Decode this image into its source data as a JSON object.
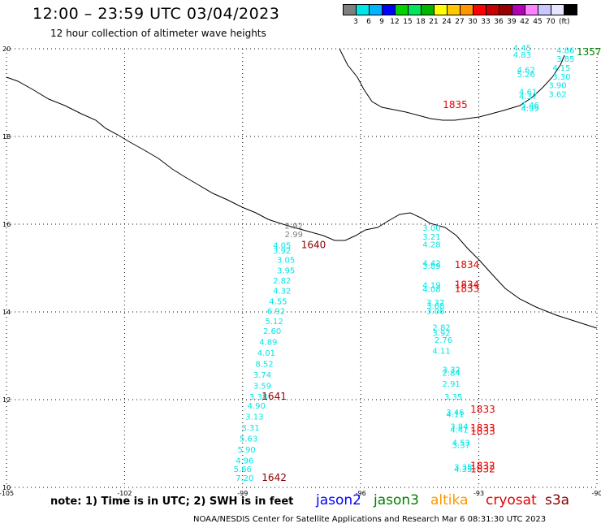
{
  "header": {
    "title": "12:00 – 23:59 UTC 03/04/2023",
    "subtitle": "12 hour collection of altimeter wave heights"
  },
  "scale": {
    "colors": [
      "#7f7f7f",
      "#00e6e6",
      "#00b4ff",
      "#0000ff",
      "#00d200",
      "#00e65a",
      "#00b400",
      "#ffff00",
      "#ffc800",
      "#ff9600",
      "#ff0000",
      "#c80000",
      "#960000",
      "#b400b4",
      "#ff82ff",
      "#c8c8ff",
      "#e6e6ff",
      "#000000"
    ],
    "labels": [
      "3",
      "6",
      "9",
      "12",
      "15",
      "18",
      "21",
      "24",
      "27",
      "30",
      "33",
      "36",
      "39",
      "42",
      "45",
      "70"
    ],
    "unit": "(ft)"
  },
  "map": {
    "lat_labels": [
      "20",
      "18",
      "16",
      "14",
      "12",
      "10"
    ],
    "lon_labels": [
      "-105",
      "-102",
      "-99",
      "-96",
      "-93",
      "-90"
    ]
  },
  "tracks": [
    {
      "color": "#00e6e6",
      "values": [
        {
          "v": "4.45",
          "lon": -91.9,
          "lat": 19.95
        },
        {
          "v": "4.83",
          "lon": -91.9,
          "lat": 19.8
        },
        {
          "v": "4.62",
          "lon": -91.8,
          "lat": 19.45
        },
        {
          "v": "5.26",
          "lon": -91.8,
          "lat": 19.35
        },
        {
          "v": "4.61",
          "lon": -91.75,
          "lat": 18.95
        },
        {
          "v": "4.37",
          "lon": -91.75,
          "lat": 18.85
        },
        {
          "v": "5.46",
          "lon": -91.7,
          "lat": 18.65
        },
        {
          "v": "4.99",
          "lon": -91.7,
          "lat": 18.57
        }
      ]
    },
    {
      "color": "#00e6e6",
      "values": [
        {
          "v": "4.86",
          "lon": -90.8,
          "lat": 19.9
        },
        {
          "v": "3.85",
          "lon": -90.8,
          "lat": 19.7
        },
        {
          "v": "4.15",
          "lon": -90.9,
          "lat": 19.5
        },
        {
          "v": "3.30",
          "lon": -90.9,
          "lat": 19.3
        },
        {
          "v": "3.90",
          "lon": -91.0,
          "lat": 19.1
        },
        {
          "v": "3.62",
          "lon": -91.0,
          "lat": 18.9
        }
      ]
    },
    {
      "color": "#7f7f7f",
      "values": [
        {
          "v": "2.92",
          "lon": -97.7,
          "lat": 15.9
        },
        {
          "v": "2.99",
          "lon": -97.7,
          "lat": 15.7
        }
      ]
    },
    {
      "color": "#00e6e6",
      "values": [
        {
          "v": "4.05",
          "lon": -98.0,
          "lat": 15.45
        },
        {
          "v": "3.92",
          "lon": -98.0,
          "lat": 15.33
        },
        {
          "v": "3.05",
          "lon": -97.9,
          "lat": 15.12
        },
        {
          "v": "3.95",
          "lon": -97.9,
          "lat": 14.88
        },
        {
          "v": "2.82",
          "lon": -98.0,
          "lat": 14.65
        },
        {
          "v": "4.32",
          "lon": -98.0,
          "lat": 14.42
        },
        {
          "v": "4.55",
          "lon": -98.1,
          "lat": 14.18
        },
        {
          "v": "6.92",
          "lon": -98.15,
          "lat": 13.95
        },
        {
          "v": "5.12",
          "lon": -98.2,
          "lat": 13.72
        },
        {
          "v": "2.60",
          "lon": -98.25,
          "lat": 13.5
        },
        {
          "v": "4.89",
          "lon": -98.35,
          "lat": 13.25
        },
        {
          "v": "4.01",
          "lon": -98.4,
          "lat": 13.0
        },
        {
          "v": "8.52",
          "lon": -98.45,
          "lat": 12.75
        },
        {
          "v": "3.74",
          "lon": -98.5,
          "lat": 12.5
        },
        {
          "v": "3.59",
          "lon": -98.5,
          "lat": 12.25
        },
        {
          "v": "3.38",
          "lon": -98.6,
          "lat": 12.0
        },
        {
          "v": "4.90",
          "lon": -98.65,
          "lat": 11.8
        },
        {
          "v": "3.13",
          "lon": -98.7,
          "lat": 11.55
        },
        {
          "v": "3.31",
          "lon": -98.8,
          "lat": 11.3
        },
        {
          "v": "5.63",
          "lon": -98.85,
          "lat": 11.05
        },
        {
          "v": "5.90",
          "lon": -98.9,
          "lat": 10.8
        },
        {
          "v": "4.96",
          "lon": -98.95,
          "lat": 10.55
        },
        {
          "v": "5.66",
          "lon": -99.0,
          "lat": 10.35
        },
        {
          "v": "7.20",
          "lon": -98.95,
          "lat": 10.15
        }
      ]
    },
    {
      "color": "#00e6e6",
      "values": [
        {
          "v": "3.00",
          "lon": -94.2,
          "lat": 15.85
        },
        {
          "v": "3.21",
          "lon": -94.2,
          "lat": 15.65
        },
        {
          "v": "4.28",
          "lon": -94.2,
          "lat": 15.47
        },
        {
          "v": "4.42",
          "lon": -94.2,
          "lat": 15.05
        },
        {
          "v": "3.89",
          "lon": -94.2,
          "lat": 14.98
        },
        {
          "v": "4.19",
          "lon": -94.2,
          "lat": 14.55
        },
        {
          "v": "4.08",
          "lon": -94.2,
          "lat": 14.45
        },
        {
          "v": "3.37",
          "lon": -94.1,
          "lat": 14.15
        },
        {
          "v": "3.68",
          "lon": -94.1,
          "lat": 14.07
        },
        {
          "v": "3.08",
          "lon": -94.1,
          "lat": 13.95
        },
        {
          "v": "2.82",
          "lon": -93.95,
          "lat": 13.58
        },
        {
          "v": "3.92",
          "lon": -93.95,
          "lat": 13.45
        },
        {
          "v": "2.76",
          "lon": -93.9,
          "lat": 13.3
        },
        {
          "v": "4.11",
          "lon": -93.95,
          "lat": 13.05
        },
        {
          "v": "3.32",
          "lon": -93.7,
          "lat": 12.62
        },
        {
          "v": "2.84",
          "lon": -93.7,
          "lat": 12.55
        },
        {
          "v": "2.91",
          "lon": -93.7,
          "lat": 12.3
        },
        {
          "v": "3.35",
          "lon": -93.65,
          "lat": 12.0
        },
        {
          "v": "3.46",
          "lon": -93.6,
          "lat": 11.65
        },
        {
          "v": "4.11",
          "lon": -93.6,
          "lat": 11.6
        },
        {
          "v": "3.84",
          "lon": -93.5,
          "lat": 11.32
        },
        {
          "v": "4.41",
          "lon": -93.5,
          "lat": 11.25
        },
        {
          "v": "4.53",
          "lon": -93.45,
          "lat": 10.95
        },
        {
          "v": "3.37",
          "lon": -93.45,
          "lat": 10.9
        },
        {
          "v": "3.35",
          "lon": -93.4,
          "lat": 10.4
        },
        {
          "v": "4.35",
          "lon": -93.4,
          "lat": 10.35
        }
      ]
    }
  ],
  "times": [
    {
      "v": "1357",
      "color": "#008000",
      "lon": -90.2,
      "lat": 19.85
    },
    {
      "v": "1835",
      "color": "#e60000",
      "lon": -93.6,
      "lat": 18.65
    },
    {
      "v": "1640",
      "color": "#8b0000",
      "lon": -97.2,
      "lat": 15.45
    },
    {
      "v": "1834",
      "color": "#e60000",
      "lon": -93.3,
      "lat": 15.0
    },
    {
      "v": "1834",
      "color": "#e60000",
      "lon": -93.3,
      "lat": 14.55
    },
    {
      "v": "1833",
      "color": "#e60000",
      "lon": -93.3,
      "lat": 14.45
    },
    {
      "v": "1641",
      "color": "#8b0000",
      "lon": -98.2,
      "lat": 12.0
    },
    {
      "v": "1833",
      "color": "#e60000",
      "lon": -92.9,
      "lat": 11.7
    },
    {
      "v": "1833",
      "color": "#e60000",
      "lon": -92.9,
      "lat": 11.28
    },
    {
      "v": "1833",
      "color": "#e60000",
      "lon": -92.9,
      "lat": 11.2
    },
    {
      "v": "1642",
      "color": "#8b0000",
      "lon": -98.2,
      "lat": 10.15
    },
    {
      "v": "1832",
      "color": "#e60000",
      "lon": -92.9,
      "lat": 10.42
    },
    {
      "v": "1832",
      "color": "#e60000",
      "lon": -92.9,
      "lat": 10.34
    }
  ],
  "note": "note:  1) Time is in UTC; 2) SWH is in feet",
  "legend": {
    "jason2": {
      "label": "jason2",
      "color": "#0000ff"
    },
    "jason3": {
      "label": "jason3",
      "color": "#008000"
    },
    "altika": {
      "label": "altika",
      "color": "#ff9600"
    },
    "cryosat": {
      "label": "cryosat",
      "color": "#e60000"
    },
    "s3a": {
      "label": "s3a",
      "color": "#8b0000"
    }
  },
  "footer": "NOAA/NESDIS Center for Satellite Applications and Research    Mar  6 08:31:30 UTC 2023"
}
